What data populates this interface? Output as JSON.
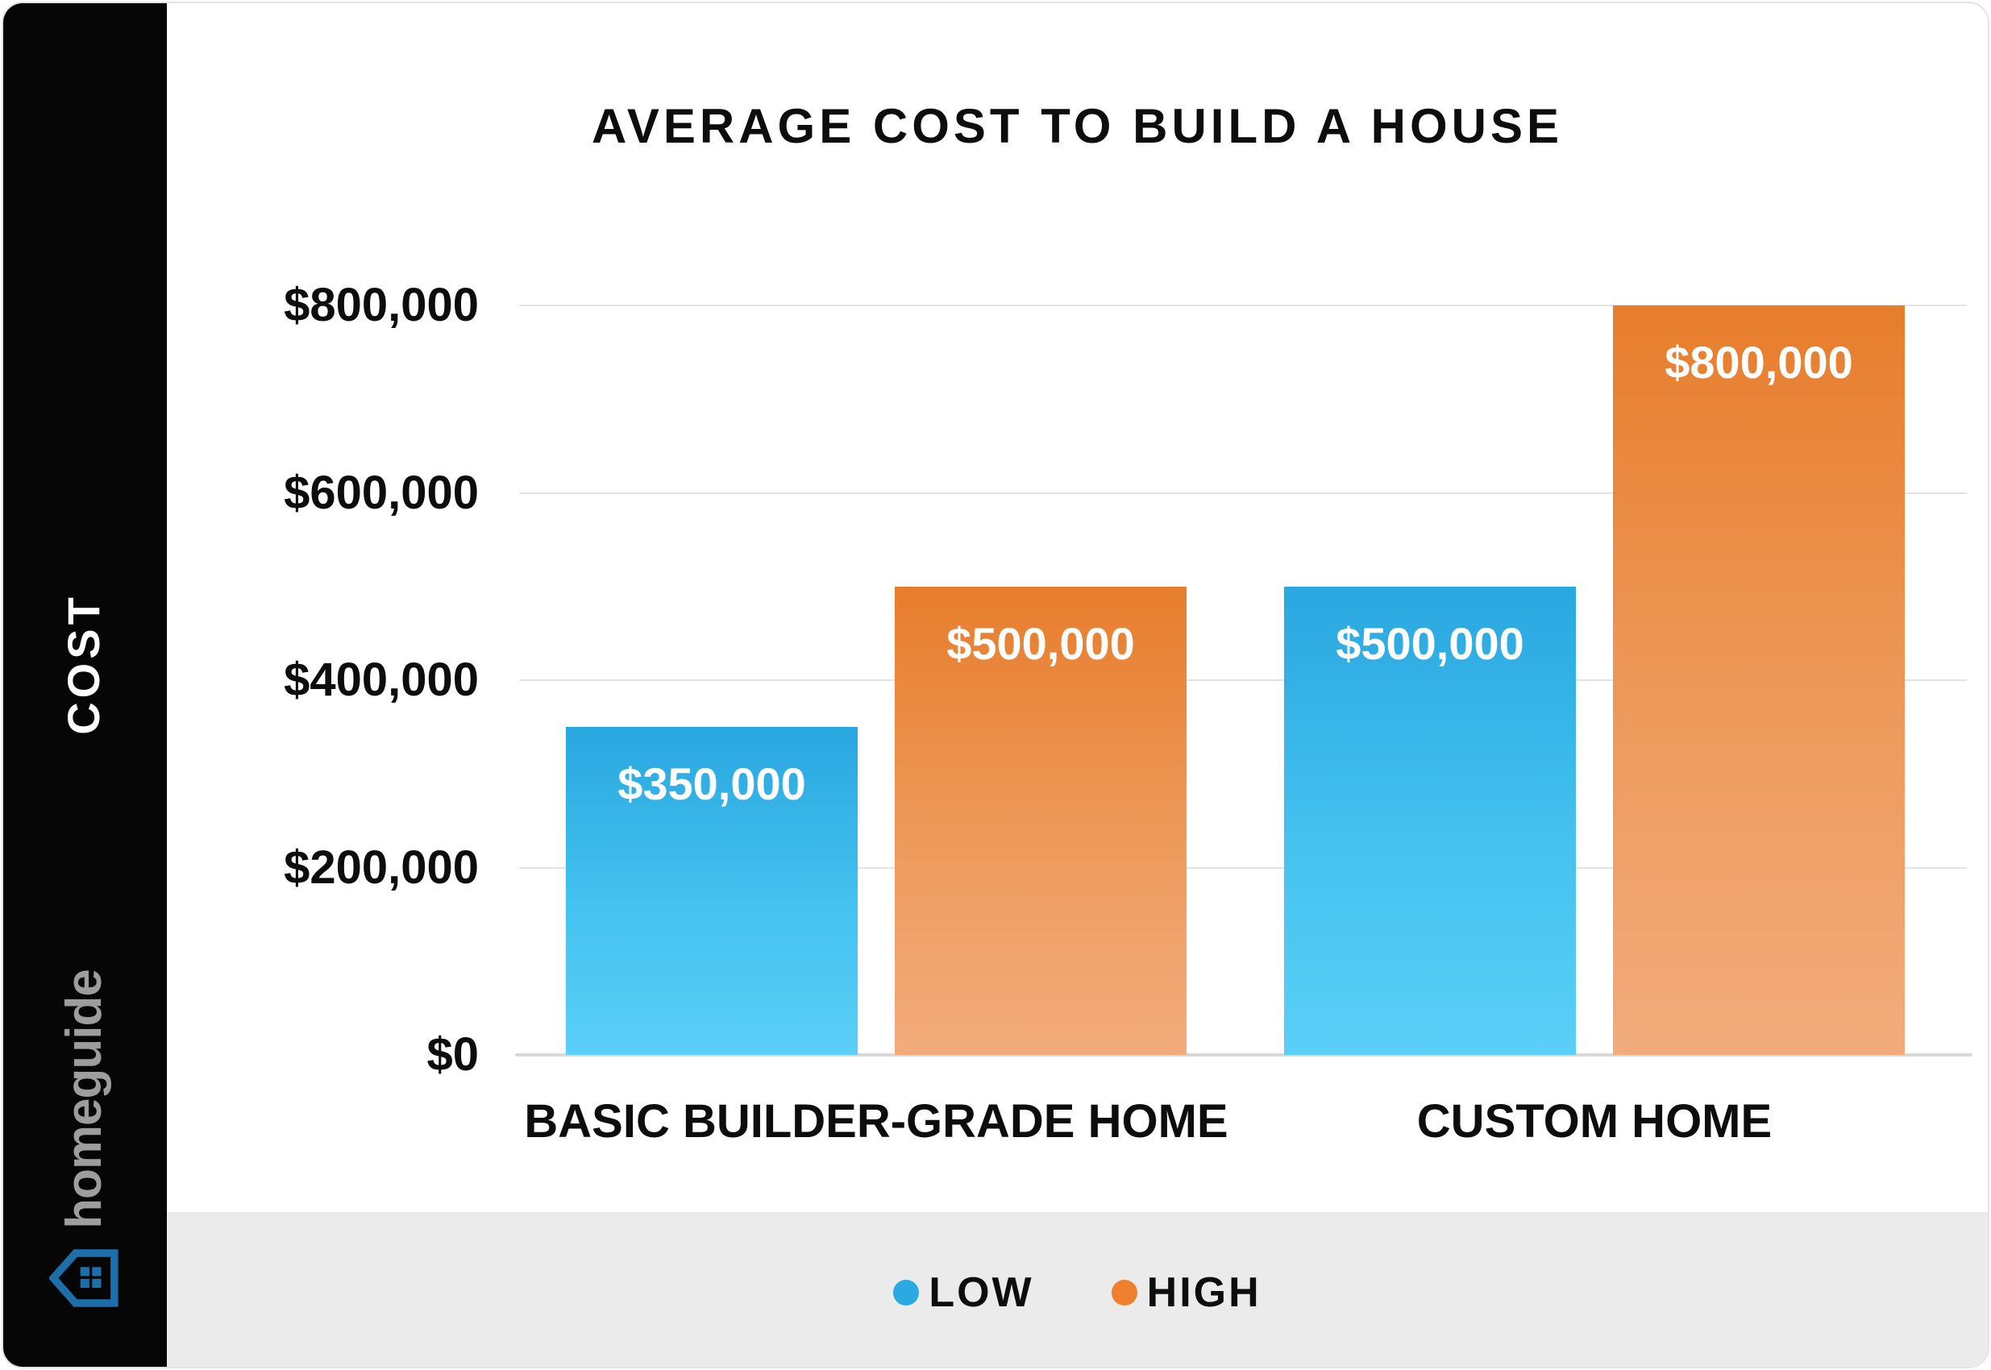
{
  "sidebar": {
    "brand": {
      "name": "homeguide",
      "icon_color": "#1C6FA8",
      "text_color": "#9D9D9D"
    }
  },
  "chart_data": {
    "type": "bar",
    "title": "AVERAGE COST TO BUILD A HOUSE",
    "ylabel": "COST",
    "categories": [
      "BASIC BUILDER-GRADE HOME",
      "CUSTOM HOME"
    ],
    "series": [
      {
        "name": "LOW",
        "color": "#29ABE2",
        "gradient_top": "#29A7E0",
        "gradient_bottom": "#5ACFF8",
        "values": [
          350000,
          500000
        ],
        "value_labels": [
          "$350,000",
          "$500,000"
        ]
      },
      {
        "name": "HIGH",
        "color": "#F0802F",
        "gradient_top": "#E77D2C",
        "gradient_bottom": "#F2AC7C",
        "values": [
          500000,
          800000
        ],
        "value_labels": [
          "$500,000",
          "$800,000"
        ]
      }
    ],
    "ylim": [
      0,
      800000
    ],
    "y_ticks": [
      {
        "value": 0,
        "label": "$0"
      },
      {
        "value": 200000,
        "label": "$200,000"
      },
      {
        "value": 400000,
        "label": "$400,000"
      },
      {
        "value": 600000,
        "label": "$600,000"
      },
      {
        "value": 800000,
        "label": "$800,000"
      }
    ],
    "grid": true,
    "legend_position": "bottom"
  }
}
